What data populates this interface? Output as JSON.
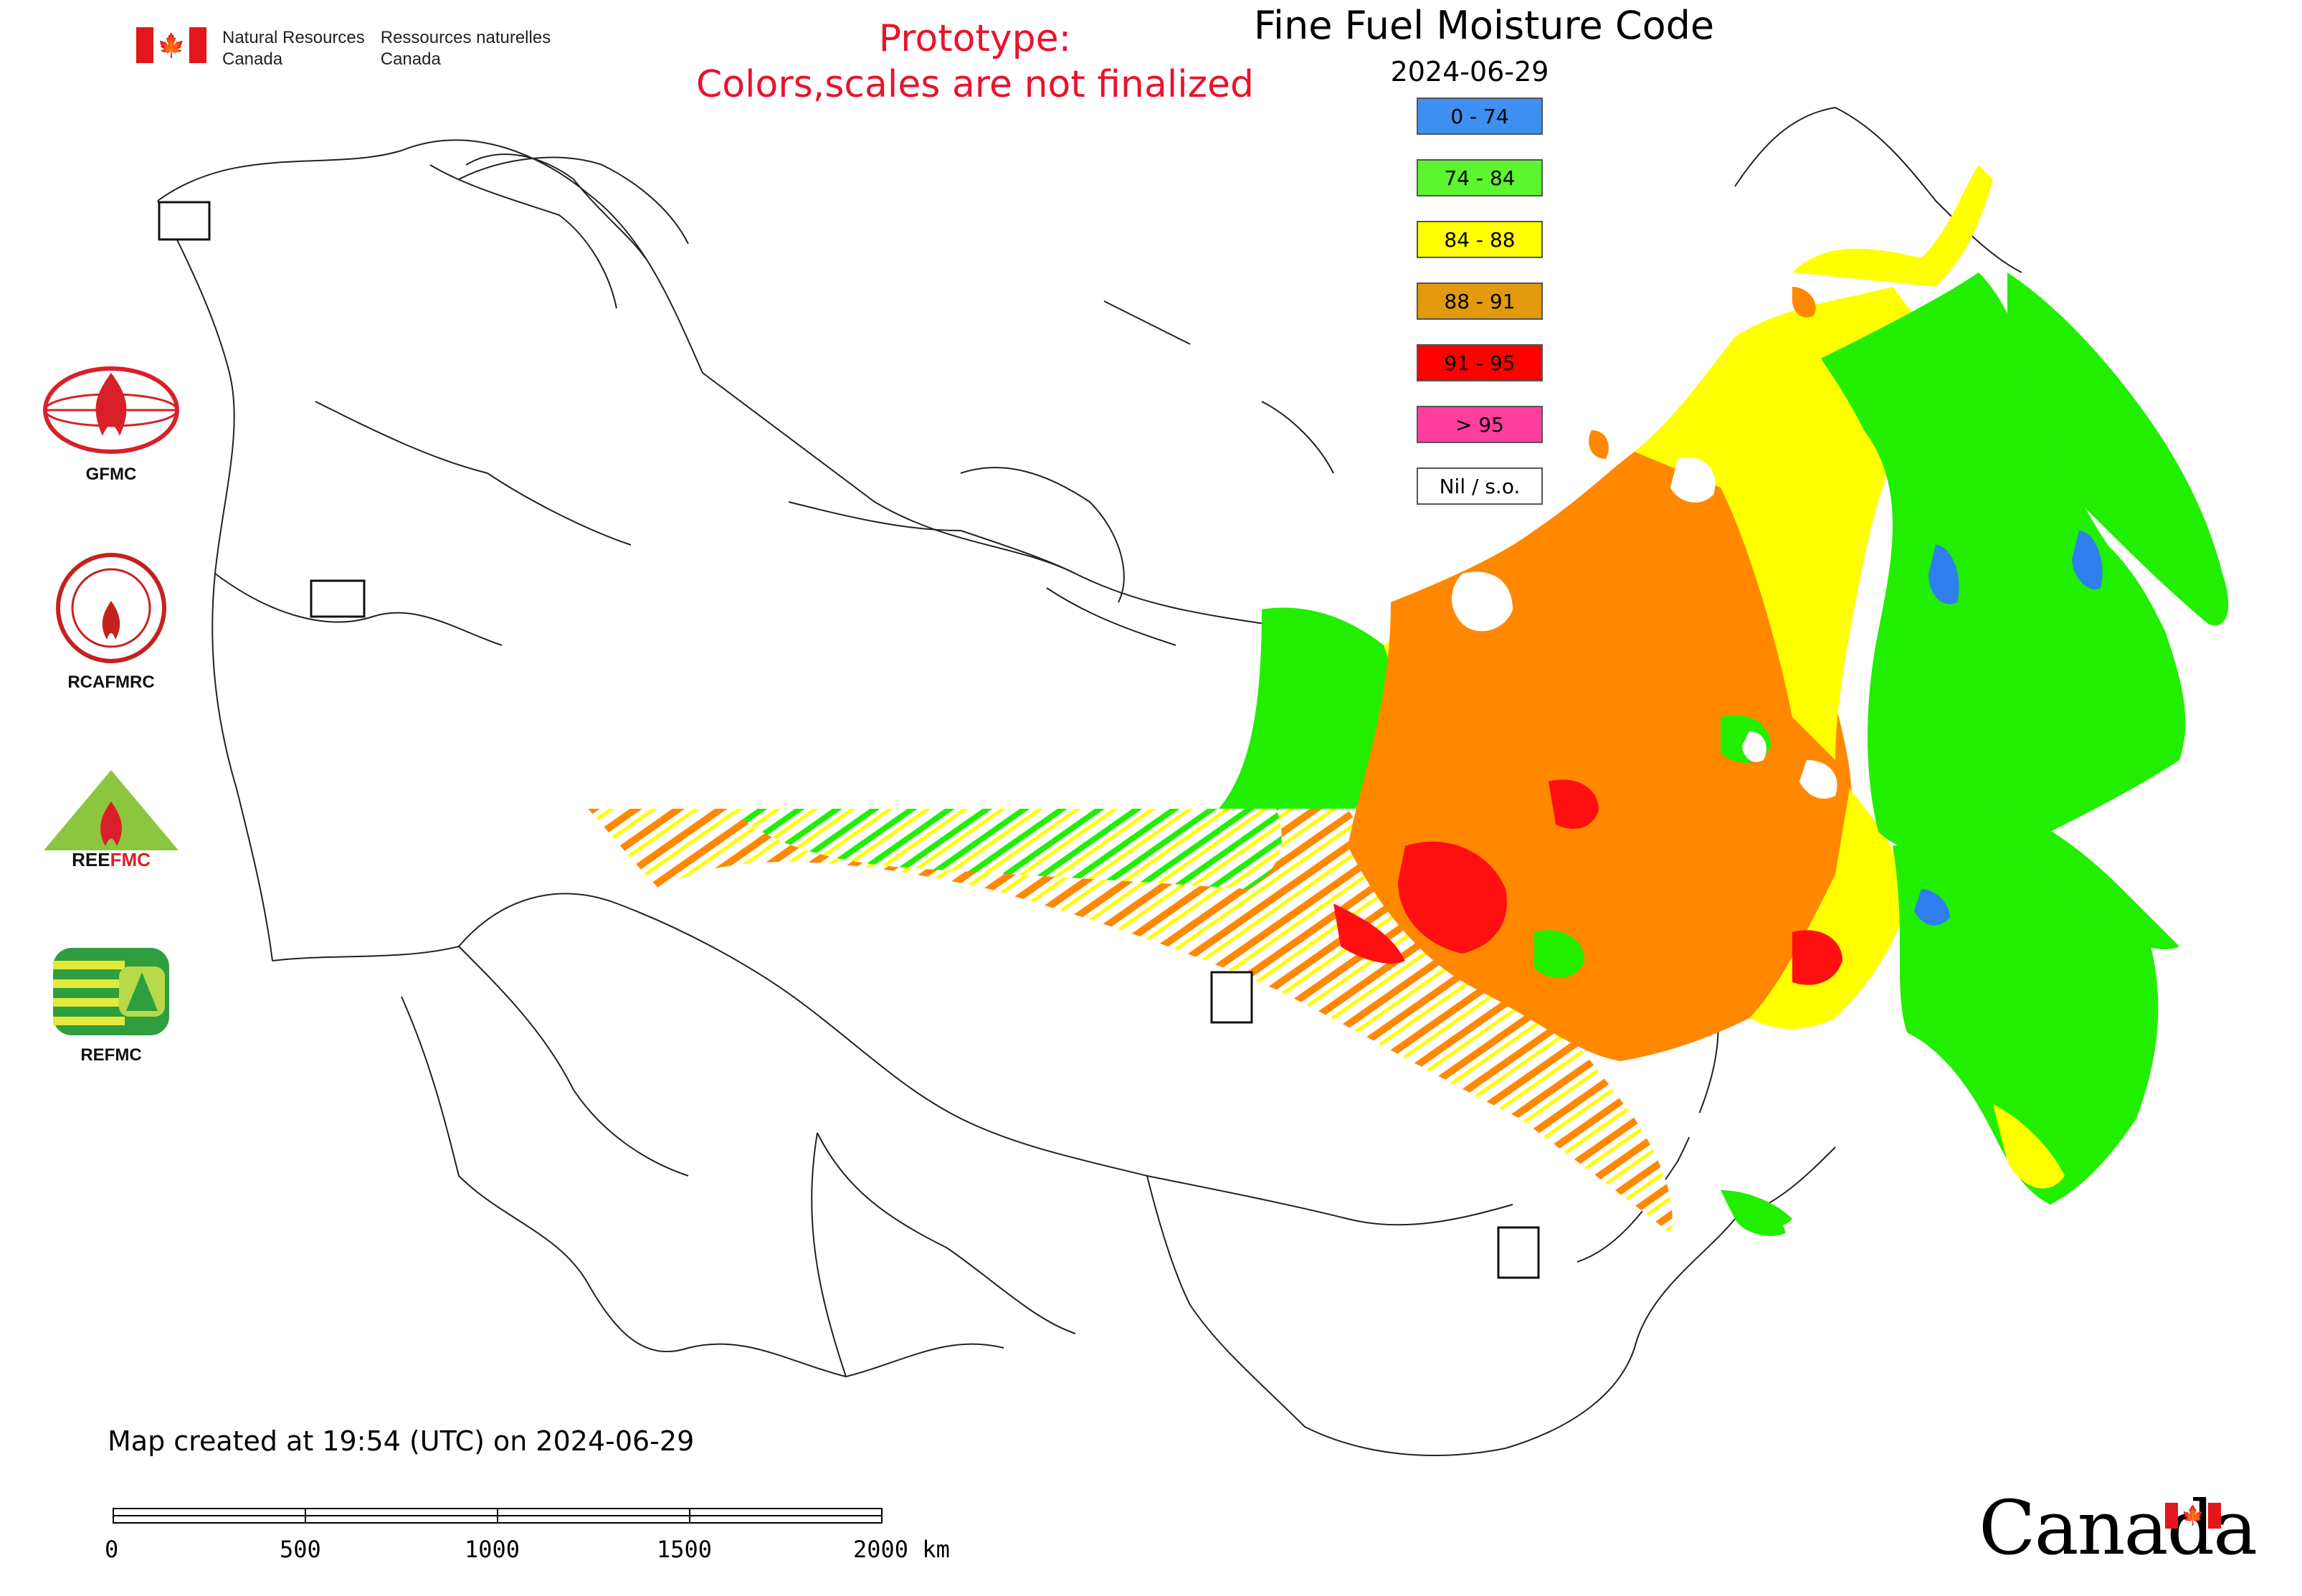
{
  "header": {
    "dept_en_line1": "Natural Resources",
    "dept_en_line2": "Canada",
    "dept_fr_line1": "Ressources naturelles",
    "dept_fr_line2": "Canada",
    "prototype_line1": "Prototype:",
    "prototype_line2": "Colors,scales are not finalized"
  },
  "map": {
    "title": "Fine Fuel Moisture Code",
    "date": "2024-06-29",
    "legend": [
      {
        "label": "0 - 74",
        "color": "#3d8ff0"
      },
      {
        "label": "74 - 84",
        "color": "#5cf52f"
      },
      {
        "label": "84 - 88",
        "color": "#ffff00"
      },
      {
        "label": "88 - 91",
        "color": "#e09a0c"
      },
      {
        "label": "91 - 95",
        "color": "#ff0000"
      },
      {
        "label": "> 95",
        "color": "#ff3ea0"
      },
      {
        "label": "Nil / s.o.",
        "color": "#ffffff"
      }
    ],
    "map_colors": {
      "orange": "#ff8800",
      "green": "#22ee00",
      "yellow": "#ffff00",
      "red": "#ff1010",
      "blue": "#2f80ee"
    },
    "logos": [
      {
        "name": "GFMC"
      },
      {
        "name": "RCAFMRC"
      },
      {
        "name": "REEFMC"
      },
      {
        "name": "REFMC"
      }
    ],
    "created_text": "Map created at 19:54 (UTC) on 2024-06-29",
    "scale_labels": [
      "0",
      "500",
      "1000",
      "1500",
      "2000 km"
    ]
  },
  "footer": {
    "wordmark": "Canada"
  }
}
